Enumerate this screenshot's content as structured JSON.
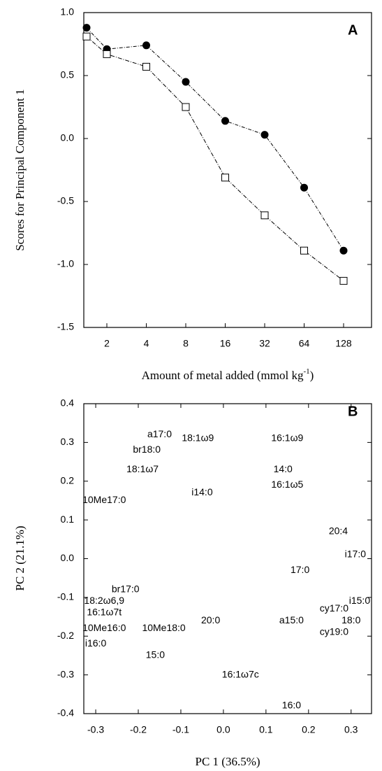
{
  "chart_data": [
    {
      "type": "line",
      "panel_label": "A",
      "ylabel": "Scores for Principal Component 1",
      "xlabel_parts": [
        "Amount of metal added (mmol kg",
        "-1",
        ")"
      ],
      "categories": [
        null,
        "2",
        "4",
        "8",
        "16",
        "32",
        "64",
        "128"
      ],
      "series": [
        {
          "color": "#000000",
          "marker": "circle",
          "filled": true,
          "values": [
            0.88,
            0.71,
            0.74,
            0.45,
            0.14,
            0.03,
            -0.39,
            -0.89
          ]
        },
        {
          "color": "#000000",
          "marker": "square",
          "filled": false,
          "values": [
            0.81,
            0.67,
            0.57,
            0.25,
            -0.31,
            -0.61,
            -0.89,
            -1.13
          ]
        }
      ],
      "ylim": [
        -1.5,
        1.0
      ],
      "yticks": [
        {
          "value": 1,
          "label": "1.0"
        },
        0.5,
        {
          "value": 0,
          "label": "0.0"
        },
        -0.5,
        {
          "value": -1,
          "label": "-1.0"
        },
        -1.5
      ]
    },
    {
      "type": "scatter",
      "panel_label": "B",
      "ylabel": "PC 2 (21.1%)",
      "xlabel": "PC 1 (36.5%)",
      "labels": [
        "a17:0",
        "18:1ω9",
        "br18:0",
        "16:1ω9",
        "18:1ω7",
        "14:0",
        "16:1ω5",
        "i14:0",
        "10Me17:0",
        "20:4",
        "i17:0",
        "17:0",
        "br17:0",
        "i15:0",
        "18:2ω6,9",
        "cy17:0",
        "16:1ω7t",
        "20:0",
        "a15:0",
        "18:0",
        "10Me16:0",
        "10Me18:0",
        "cy19:0",
        "i16:0",
        "15:0",
        "16:1ω7c",
        "16:0"
      ],
      "x": [
        -0.15,
        -0.06,
        -0.18,
        0.15,
        -0.19,
        0.14,
        0.15,
        -0.05,
        -0.28,
        0.27,
        0.31,
        0.18,
        -0.23,
        0.32,
        -0.28,
        0.26,
        -0.28,
        -0.03,
        0.16,
        0.3,
        -0.28,
        -0.14,
        0.26,
        -0.3,
        -0.16,
        0.04,
        0.16
      ],
      "values": [
        0.32,
        0.31,
        0.28,
        0.31,
        0.23,
        0.23,
        0.19,
        0.17,
        0.15,
        0.07,
        0.01,
        -0.03,
        -0.08,
        -0.11,
        -0.11,
        -0.13,
        -0.14,
        -0.16,
        -0.16,
        -0.16,
        -0.18,
        -0.18,
        -0.19,
        -0.22,
        -0.25,
        -0.3,
        -0.38
      ],
      "color": "#000000",
      "xlim": [
        -0.328,
        0.348
      ],
      "ylim": [
        -0.4,
        0.4
      ],
      "xticks": [
        -0.3,
        -0.2,
        -0.1,
        {
          "value": 0,
          "label": "0.0"
        },
        0.1,
        0.2,
        0.3
      ],
      "yticks": [
        0.4,
        0.3,
        0.2,
        0.1,
        {
          "value": 0,
          "label": "0.0"
        },
        -0.1,
        -0.2,
        -0.3,
        -0.4
      ]
    }
  ]
}
